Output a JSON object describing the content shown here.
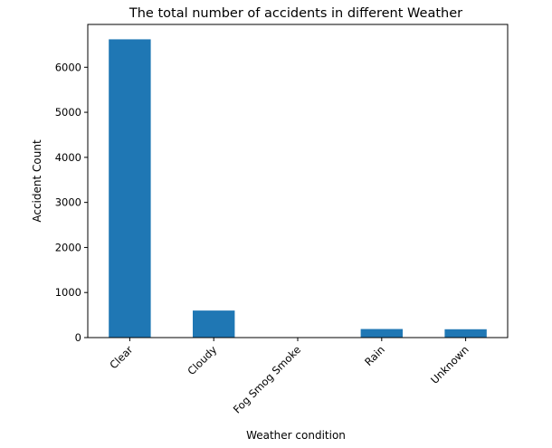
{
  "chart_data": {
    "type": "bar",
    "title": "The total number of accidents in different Weather",
    "xlabel": "Weather condition",
    "ylabel": "Accident Count",
    "categories": [
      "Clear",
      "Cloudy",
      "Fog Smog Smoke",
      "Rain",
      "Unknown"
    ],
    "values": [
      6620,
      600,
      10,
      190,
      185
    ],
    "ylim": [
      0,
      6950
    ],
    "yticks": [
      0,
      1000,
      2000,
      3000,
      4000,
      5000,
      6000
    ],
    "ytick_labels": [
      "0",
      "1000",
      "2000",
      "3000",
      "4000",
      "5000",
      "6000"
    ],
    "bar_color": "#1f77b4",
    "grid": false,
    "legend": false
  }
}
